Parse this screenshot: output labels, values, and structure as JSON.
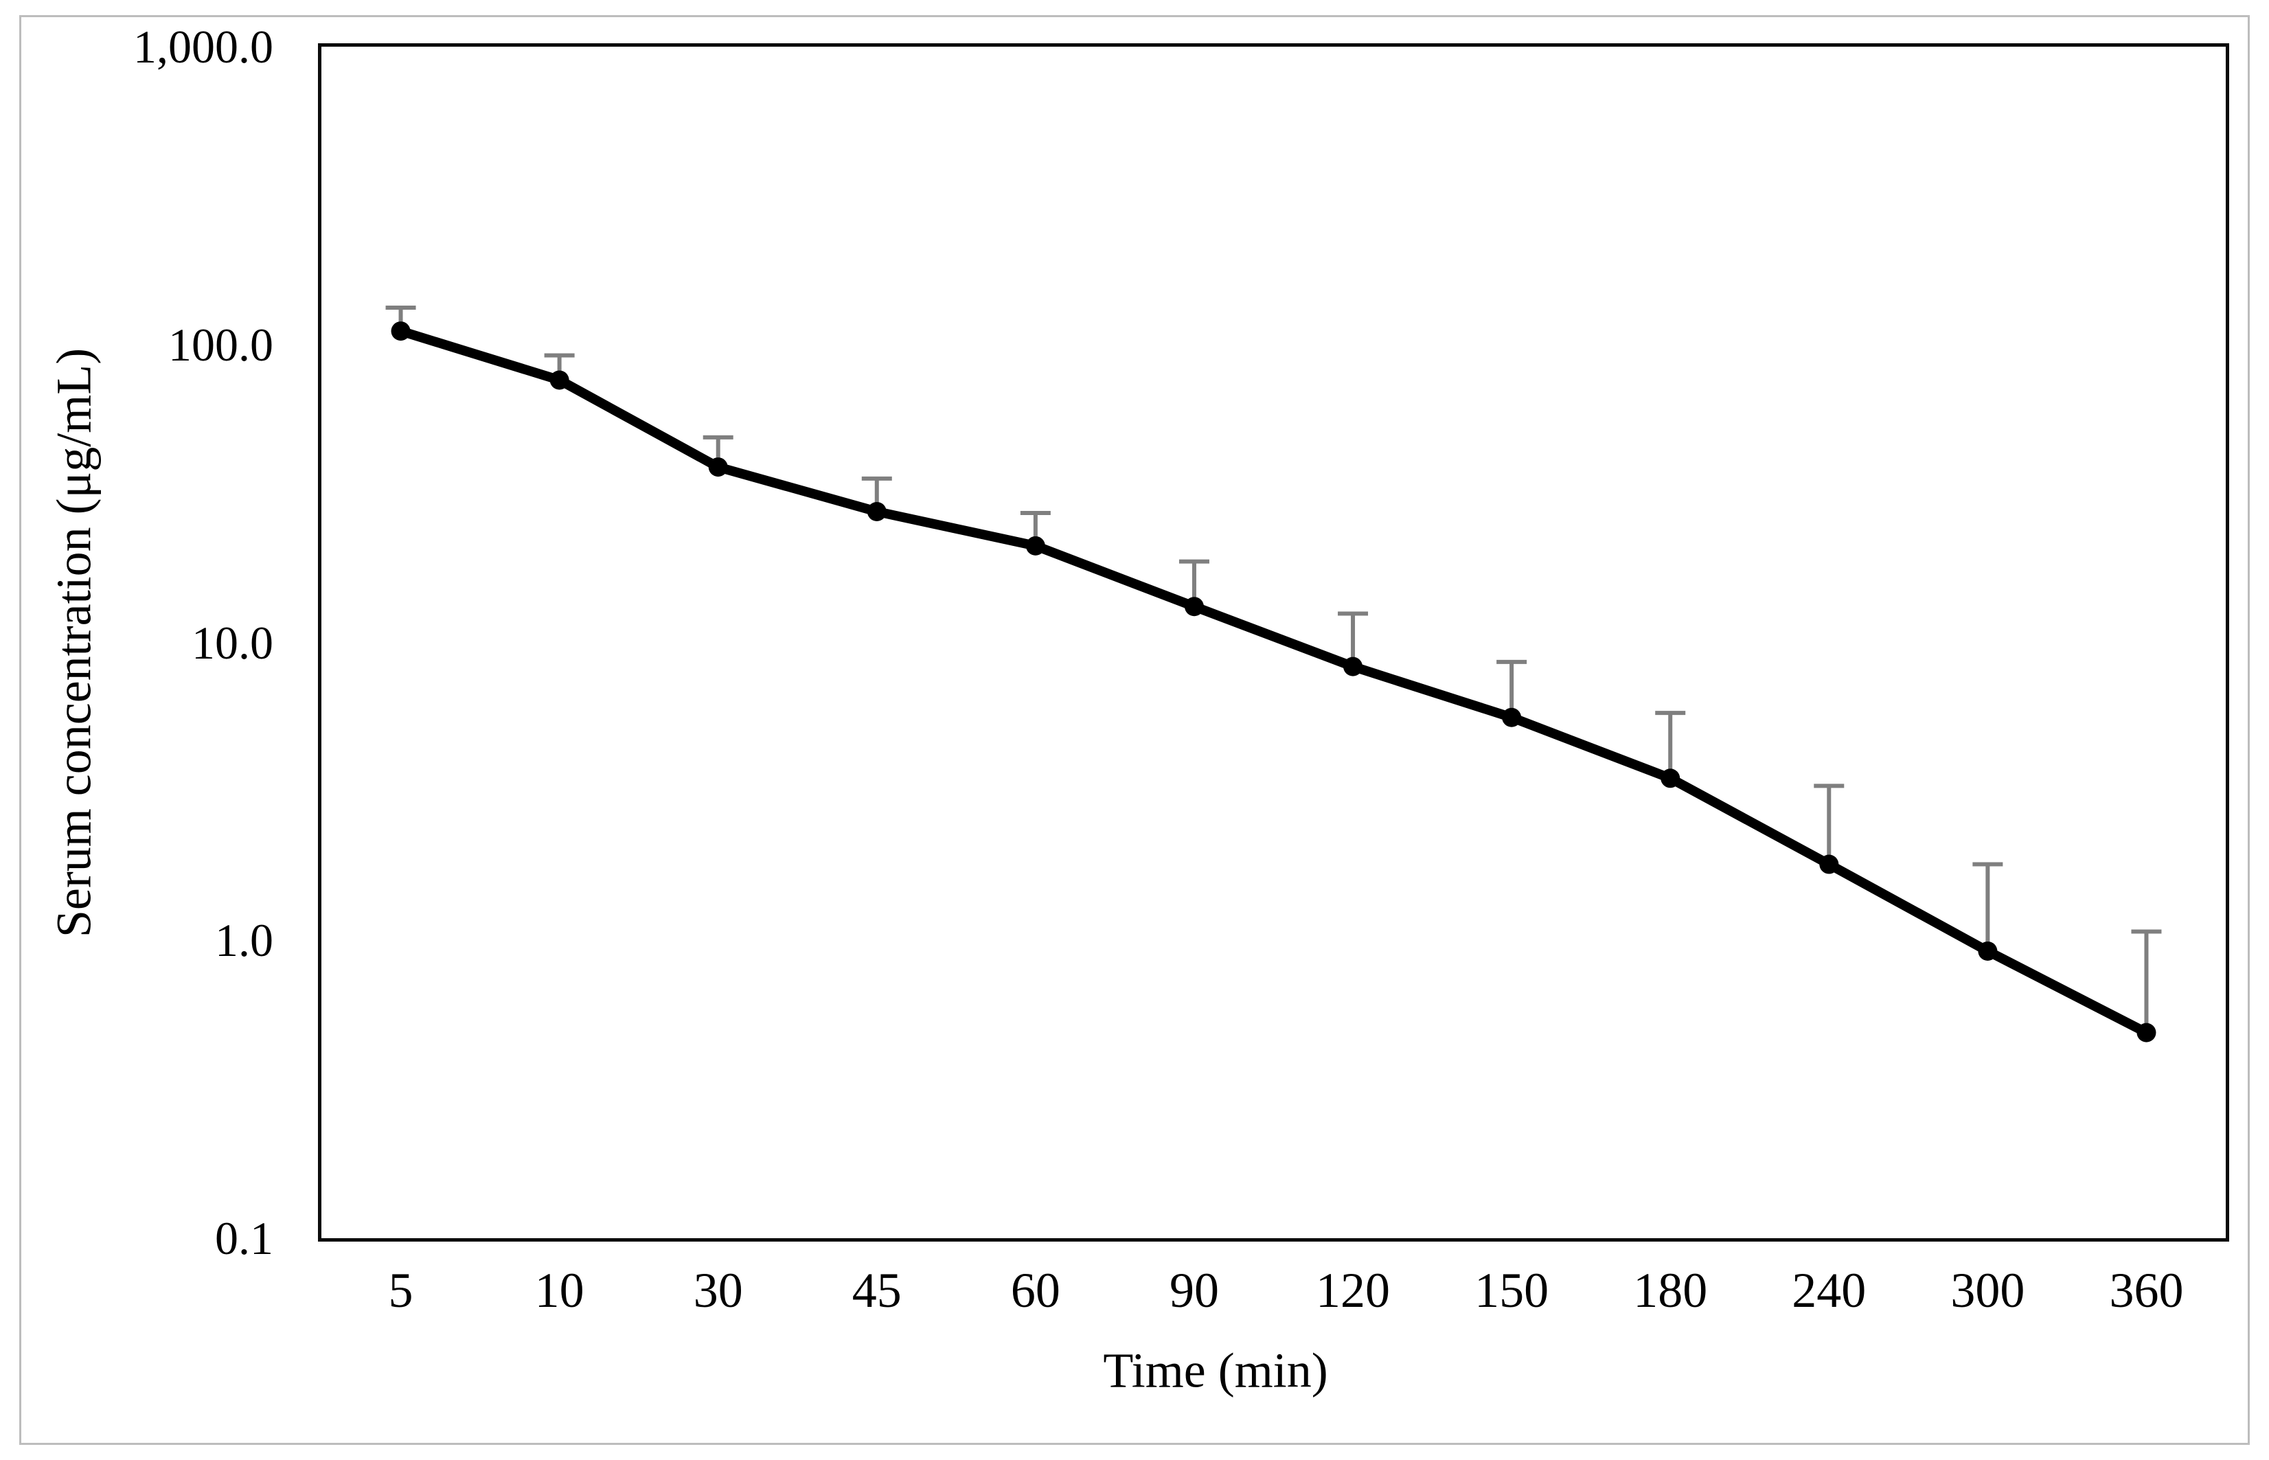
{
  "figure": {
    "y_tick_labels": [
      "1,000.0",
      "100.0",
      "10.0",
      "1.0",
      "0.1"
    ],
    "colors": {
      "series_line": "#000000",
      "marker": "#000000",
      "error_bar": "#7f7f7f",
      "plot_frame": "#0a0a0a",
      "outer_border": "#bdbdbd",
      "background": "#ffffff"
    }
  },
  "chart_data": {
    "type": "line",
    "title": "",
    "xlabel": "Time (min)",
    "ylabel": "Serum concentration (μg/mL)",
    "x_scale": "category",
    "y_scale": "log10",
    "ylim": [
      0.1,
      1000
    ],
    "y_ticks": [
      1000,
      100,
      10,
      1,
      0.1
    ],
    "categories": [
      5,
      10,
      30,
      45,
      60,
      90,
      120,
      150,
      180,
      240,
      300,
      360
    ],
    "series": [
      {
        "name": "Serum concentration",
        "values": [
          111,
          76,
          38.8,
          27.5,
          21.1,
          13.2,
          8.3,
          5.6,
          3.5,
          1.8,
          0.92,
          0.49
        ],
        "error_upper": [
          133,
          92,
          48.8,
          35.5,
          27.2,
          18.7,
          12.5,
          8.6,
          5.8,
          3.3,
          1.8,
          1.07
        ]
      }
    ],
    "error_bars": "upper_only",
    "grid": false,
    "legend": false,
    "marker": "filled_circle",
    "line_width": 14,
    "marker_radius": 14
  }
}
